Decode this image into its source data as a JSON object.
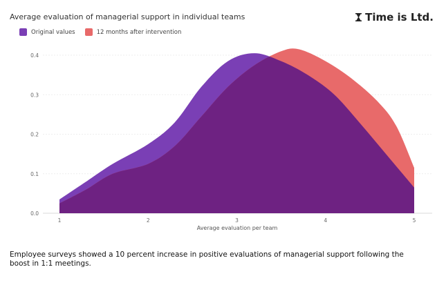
{
  "header": {
    "title": "Average evaluation of managerial support in individual teams",
    "brand": "Time is Ltd."
  },
  "caption": "Employee surveys showed a 10 percent increase in positive evaluations of managerial support following the boost in 1:1 meetings.",
  "chart_data": {
    "type": "area",
    "title": "Average evaluation of managerial support in individual teams",
    "xlabel": "Average evaluation per team",
    "ylabel": "",
    "xlim": [
      1,
      5
    ],
    "ylim": [
      0,
      0.4
    ],
    "x_ticks": [
      "1",
      "2",
      "3",
      "4",
      "5"
    ],
    "y_ticks": [
      "0.0",
      "0.1",
      "0.2",
      "0.3",
      "0.4"
    ],
    "grid": true,
    "legend_position": "top-left",
    "series": [
      {
        "name": "Original values",
        "color": "#7a3fb5",
        "points": [
          [
            1,
            0.035
          ],
          [
            1.3,
            0.08
          ],
          [
            1.6,
            0.125
          ],
          [
            2,
            0.175
          ],
          [
            2.3,
            0.23
          ],
          [
            2.6,
            0.32
          ],
          [
            2.9,
            0.385
          ],
          [
            3.2,
            0.405
          ],
          [
            3.5,
            0.385
          ],
          [
            3.8,
            0.35
          ],
          [
            4.1,
            0.3
          ],
          [
            4.4,
            0.225
          ],
          [
            4.7,
            0.145
          ],
          [
            5,
            0.065
          ]
        ]
      },
      {
        "name": "12 months after intervention",
        "color": "#e86a6a",
        "points": [
          [
            1,
            0.025
          ],
          [
            1.3,
            0.06
          ],
          [
            1.6,
            0.1
          ],
          [
            2,
            0.125
          ],
          [
            2.3,
            0.17
          ],
          [
            2.6,
            0.245
          ],
          [
            2.9,
            0.32
          ],
          [
            3.2,
            0.375
          ],
          [
            3.5,
            0.41
          ],
          [
            3.7,
            0.415
          ],
          [
            4,
            0.385
          ],
          [
            4.3,
            0.34
          ],
          [
            4.6,
            0.28
          ],
          [
            4.8,
            0.22
          ],
          [
            5,
            0.115
          ]
        ]
      }
    ],
    "overlap_color": "#6e2282"
  }
}
